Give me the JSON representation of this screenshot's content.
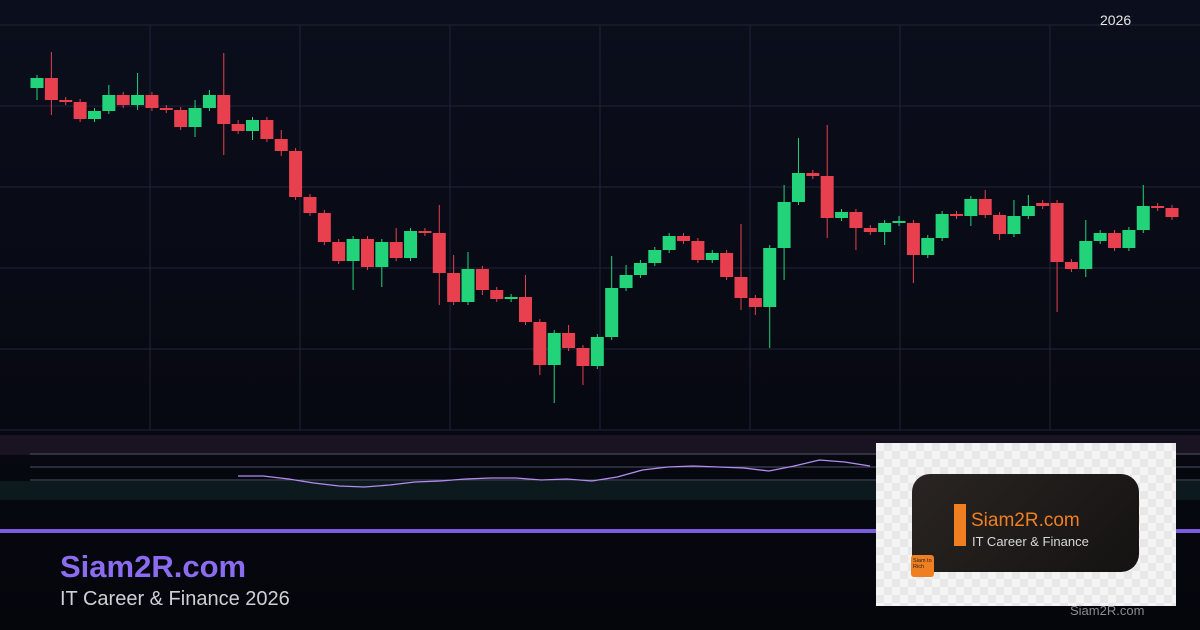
{
  "header": {
    "year_label": "2026"
  },
  "branding": {
    "title": "Siam2R.com",
    "subtitle": "IT Career & Finance 2026",
    "logo_name": "Siam2R.com",
    "logo_tagline": "IT Career & Finance",
    "logo_badge": "Siam to Rich",
    "watermark": "Siam2R.com"
  },
  "colors": {
    "background": "#0b0e1c",
    "up": "#22d37a",
    "down": "#e8404f",
    "grid": "#1f2438",
    "accent": "#7b5ce0",
    "title": "#8b6cf0",
    "oscillator": "#b48cf0",
    "logo_orange": "#f07f22"
  },
  "chart_data": {
    "type": "candlestick",
    "grid": true,
    "candles": [
      [
        342,
        352,
        355,
        330
      ],
      [
        352,
        330,
        378,
        315
      ],
      [
        330,
        328,
        333,
        325
      ],
      [
        328,
        311,
        331,
        308
      ],
      [
        311,
        319,
        322,
        308
      ],
      [
        319,
        335,
        345,
        316
      ],
      [
        335,
        325,
        338,
        322
      ],
      [
        325,
        335,
        357,
        320
      ],
      [
        335,
        322,
        338,
        319
      ],
      [
        322,
        320,
        325,
        317
      ],
      [
        320,
        303,
        323,
        300
      ],
      [
        303,
        322,
        330,
        293
      ],
      [
        322,
        335,
        340,
        319
      ],
      [
        335,
        306,
        377,
        275
      ],
      [
        306,
        299,
        310,
        296
      ],
      [
        299,
        310,
        313,
        290
      ],
      [
        310,
        291,
        313,
        288
      ],
      [
        291,
        279,
        300,
        274
      ],
      [
        279,
        233,
        282,
        230
      ],
      [
        233,
        217,
        236,
        214
      ],
      [
        217,
        188,
        220,
        185
      ],
      [
        188,
        169,
        191,
        166
      ],
      [
        169,
        191,
        194,
        140
      ],
      [
        191,
        163,
        194,
        160
      ],
      [
        163,
        188,
        191,
        143
      ],
      [
        188,
        172,
        202,
        169
      ],
      [
        172,
        199,
        202,
        169
      ],
      [
        199,
        197,
        202,
        194
      ],
      [
        197,
        157,
        225,
        125
      ],
      [
        157,
        128,
        175,
        125
      ],
      [
        128,
        161,
        178,
        125
      ],
      [
        161,
        140,
        164,
        135
      ],
      [
        140,
        131,
        143,
        128
      ],
      [
        131,
        133,
        136,
        128
      ],
      [
        133,
        108,
        155,
        105
      ],
      [
        108,
        65,
        111,
        55
      ],
      [
        65,
        97,
        100,
        27
      ],
      [
        97,
        82,
        105,
        79
      ],
      [
        82,
        64,
        85,
        45
      ],
      [
        64,
        93,
        96,
        61
      ],
      [
        93,
        142,
        174,
        90
      ],
      [
        142,
        155,
        165,
        139
      ],
      [
        155,
        167,
        170,
        152
      ],
      [
        167,
        180,
        183,
        164
      ],
      [
        180,
        194,
        197,
        177
      ],
      [
        194,
        189,
        197,
        186
      ],
      [
        189,
        170,
        192,
        167
      ],
      [
        170,
        177,
        180,
        167
      ],
      [
        177,
        153,
        180,
        150
      ],
      [
        153,
        132,
        206,
        120
      ],
      [
        132,
        123,
        135,
        115
      ],
      [
        123,
        182,
        185,
        82
      ],
      [
        182,
        228,
        245,
        150
      ],
      [
        228,
        257,
        292,
        225
      ],
      [
        257,
        254,
        260,
        251
      ],
      [
        254,
        212,
        305,
        192
      ],
      [
        212,
        218,
        221,
        209
      ],
      [
        218,
        202,
        221,
        180
      ],
      [
        202,
        198,
        205,
        195
      ],
      [
        198,
        207,
        210,
        185
      ],
      [
        207,
        209,
        214,
        204
      ],
      [
        207,
        175,
        210,
        147
      ],
      [
        175,
        192,
        195,
        172
      ],
      [
        192,
        216,
        219,
        189
      ],
      [
        216,
        214,
        219,
        211
      ],
      [
        214,
        231,
        234,
        204
      ],
      [
        231,
        215,
        240,
        212
      ],
      [
        215,
        196,
        218,
        190
      ],
      [
        196,
        214,
        230,
        193
      ],
      [
        214,
        224,
        235,
        211
      ],
      [
        227,
        224,
        230,
        221
      ],
      [
        227,
        168,
        230,
        118
      ],
      [
        168,
        161,
        171,
        158
      ],
      [
        161,
        189,
        210,
        153
      ],
      [
        189,
        197,
        200,
        186
      ],
      [
        197,
        182,
        200,
        179
      ],
      [
        182,
        200,
        203,
        179
      ],
      [
        200,
        224,
        245,
        197
      ],
      [
        224,
        222,
        227,
        219
      ],
      [
        222,
        213,
        225,
        210
      ]
    ],
    "candle_fields": [
      "open",
      "close",
      "high",
      "low"
    ],
    "oscillator": [
      24,
      24,
      21,
      17,
      14,
      13,
      15,
      18,
      19,
      21,
      22,
      22,
      20,
      21,
      19,
      23,
      30,
      33,
      34,
      33,
      32,
      29,
      34,
      40,
      38,
      34
    ]
  }
}
